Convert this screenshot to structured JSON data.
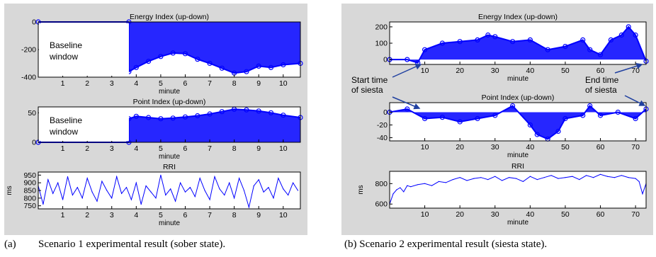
{
  "chart_data": [
    {
      "id": "a",
      "caption_label": "(a)",
      "caption_text": "Scenario 1 experimental result (sober state).",
      "subplots": [
        {
          "type": "scatter",
          "title": "Energy Index (up-down)",
          "xlabel": "minute",
          "ylabel": "",
          "xlim": [
            0,
            10.7
          ],
          "ylim": [
            -400,
            0
          ],
          "xticks": [
            1,
            2,
            3,
            4,
            5,
            6,
            7,
            8,
            9,
            10
          ],
          "yticks": [
            0,
            -200,
            -400
          ],
          "x": [
            0,
            3.7,
            3.7,
            4.0,
            4.5,
            5.0,
            5.5,
            6.0,
            6.5,
            7.0,
            7.5,
            8.0,
            8.5,
            9.0,
            9.5,
            10.0,
            10.7
          ],
          "y": [
            0,
            0,
            -360,
            -330,
            -285,
            -250,
            -225,
            -230,
            -270,
            -300,
            -335,
            -370,
            -360,
            -320,
            -330,
            -310,
            -300
          ],
          "annotation": "Baseline window"
        },
        {
          "type": "scatter",
          "title": "Point Index (up-down)",
          "xlabel": "minute",
          "ylabel": "",
          "xlim": [
            0,
            10.7
          ],
          "ylim": [
            0,
            60
          ],
          "xticks": [
            1,
            2,
            3,
            4,
            5,
            6,
            7,
            8,
            9,
            10
          ],
          "yticks": [
            0,
            50
          ],
          "x": [
            0,
            3.7,
            3.7,
            4.0,
            4.5,
            5.0,
            5.5,
            6.0,
            6.5,
            7.0,
            7.5,
            8.0,
            8.5,
            9.0,
            9.5,
            10.0,
            10.7
          ],
          "y": [
            0,
            0,
            40,
            44,
            42,
            40,
            41,
            43,
            45,
            48,
            52,
            56,
            55,
            53,
            50,
            46,
            42
          ],
          "annotation": "Baseline window"
        },
        {
          "type": "line",
          "title": "RRI",
          "xlabel": "minute",
          "ylabel": "ms",
          "xlim": [
            0,
            10.7
          ],
          "ylim": [
            730,
            970
          ],
          "xticks": [
            1,
            2,
            3,
            4,
            5,
            6,
            7,
            8,
            9,
            10
          ],
          "yticks": [
            750,
            800,
            850,
            900,
            950
          ],
          "x": [
            0,
            0.2,
            0.4,
            0.6,
            0.8,
            1.0,
            1.2,
            1.4,
            1.6,
            1.8,
            2.0,
            2.2,
            2.4,
            2.6,
            2.8,
            3.0,
            3.2,
            3.4,
            3.6,
            3.8,
            4.0,
            4.2,
            4.4,
            4.6,
            4.8,
            5.0,
            5.2,
            5.4,
            5.6,
            5.8,
            6.0,
            6.2,
            6.4,
            6.6,
            6.8,
            7.0,
            7.2,
            7.4,
            7.6,
            7.8,
            8.0,
            8.2,
            8.4,
            8.6,
            8.8,
            9.0,
            9.2,
            9.4,
            9.6,
            9.8,
            10.0,
            10.2,
            10.4,
            10.6
          ],
          "y": [
            880,
            760,
            920,
            830,
            900,
            790,
            940,
            820,
            870,
            800,
            930,
            840,
            780,
            910,
            850,
            800,
            940,
            830,
            870,
            790,
            900,
            760,
            880,
            840,
            800,
            950,
            820,
            860,
            780,
            900,
            840,
            870,
            810,
            930,
            850,
            790,
            940,
            860,
            820,
            900,
            800,
            930,
            850,
            740,
            880,
            920,
            840,
            870,
            800,
            930,
            860,
            820,
            900,
            850
          ]
        }
      ]
    },
    {
      "id": "b",
      "caption_label": "(b)",
      "caption_text": "Scenario 2 experimental result (siesta state).",
      "subplots": [
        {
          "type": "scatter",
          "title": "Energy Index (up-down)",
          "xlabel": "minute",
          "ylabel": "",
          "xlim": [
            0,
            73
          ],
          "ylim": [
            -30,
            230
          ],
          "xticks": [
            10,
            20,
            30,
            40,
            50,
            60,
            70
          ],
          "yticks": [
            0,
            100,
            200
          ],
          "x": [
            0,
            5,
            8,
            10,
            15,
            20,
            25,
            28,
            30,
            35,
            40,
            45,
            50,
            55,
            57,
            60,
            63,
            66,
            68,
            70,
            73
          ],
          "y": [
            0,
            0,
            -20,
            60,
            100,
            110,
            120,
            150,
            140,
            110,
            120,
            60,
            80,
            120,
            60,
            30,
            120,
            150,
            200,
            150,
            -10
          ]
        },
        {
          "type": "scatter",
          "title": "Point Index (up-down)",
          "xlabel": "minute",
          "ylabel": "",
          "xlim": [
            0,
            73
          ],
          "ylim": [
            -45,
            15
          ],
          "xticks": [
            10,
            20,
            30,
            40,
            50,
            60,
            70
          ],
          "yticks": [
            0,
            -20,
            -40
          ],
          "x": [
            0,
            5,
            10,
            15,
            20,
            25,
            30,
            35,
            40,
            42,
            45,
            48,
            50,
            55,
            57,
            60,
            65,
            70,
            73
          ],
          "y": [
            0,
            5,
            -10,
            -8,
            -15,
            -10,
            -5,
            10,
            -20,
            -35,
            -42,
            -30,
            -10,
            -5,
            10,
            -5,
            0,
            -10,
            5
          ]
        },
        {
          "type": "line",
          "title": "RRI",
          "xlabel": "minute",
          "ylabel": "ms",
          "xlim": [
            0,
            73
          ],
          "ylim": [
            560,
            920
          ],
          "xticks": [
            10,
            20,
            30,
            40,
            50,
            60,
            70
          ],
          "yticks": [
            600,
            800
          ],
          "x": [
            0,
            1,
            2,
            3,
            4,
            5,
            6,
            8,
            10,
            12,
            14,
            16,
            18,
            20,
            22,
            24,
            26,
            28,
            30,
            32,
            34,
            36,
            38,
            40,
            42,
            44,
            46,
            48,
            50,
            52,
            54,
            56,
            58,
            60,
            62,
            64,
            66,
            68,
            70,
            71,
            72,
            73
          ],
          "y": [
            600,
            700,
            740,
            760,
            720,
            780,
            770,
            790,
            800,
            780,
            820,
            810,
            840,
            860,
            830,
            850,
            860,
            840,
            870,
            830,
            860,
            850,
            820,
            870,
            840,
            860,
            880,
            850,
            860,
            870,
            840,
            880,
            860,
            890,
            870,
            860,
            880,
            860,
            850,
            820,
            700,
            800
          ]
        }
      ],
      "annotations": {
        "start_time": "Start time of siesta",
        "end_time": "End time of siesta"
      }
    }
  ],
  "colors": {
    "series": "#0000ff",
    "panel": "#d8d8d8",
    "axes_bg": "#ffffff"
  }
}
